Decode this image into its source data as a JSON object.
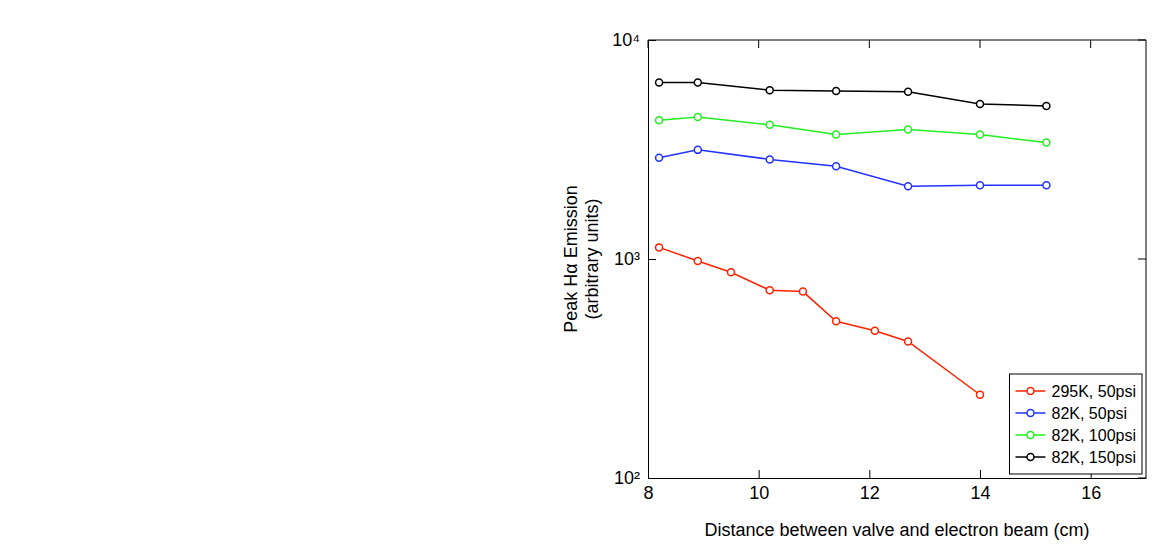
{
  "chart_data": {
    "type": "line",
    "xlabel": "Distance between valve and electron beam (cm)",
    "ylabel": [
      "Peak Hα Emission",
      "(arbitrary units)"
    ],
    "xlim": [
      8,
      17
    ],
    "xticks": [
      8,
      10,
      12,
      14,
      16
    ],
    "ylim": [
      100,
      10000
    ],
    "yticks": [
      {
        "value": 100,
        "label": "10²"
      },
      {
        "value": 1000,
        "label": "10³"
      },
      {
        "value": 10000,
        "label": "10⁴"
      }
    ],
    "log": "y",
    "grid": false,
    "legend": "lower right",
    "marker": "circle",
    "series": [
      {
        "name": "295K, 50psi",
        "color": "#ff2200",
        "x": [
          8.2,
          8.9,
          9.5,
          10.2,
          10.8,
          11.4,
          12.1,
          12.7,
          14.0
        ],
        "values": [
          1130,
          980,
          870,
          720,
          710,
          520,
          470,
          420,
          240
        ]
      },
      {
        "name": "82K, 50psi",
        "color": "#2233ff",
        "x": [
          8.2,
          8.9,
          10.2,
          11.4,
          12.7,
          14.0,
          15.2
        ],
        "values": [
          2900,
          3150,
          2850,
          2650,
          2150,
          2170,
          2170
        ]
      },
      {
        "name": "82K, 100psi",
        "color": "#22ee22",
        "x": [
          8.2,
          8.9,
          10.2,
          11.4,
          12.7,
          14.0,
          15.2
        ],
        "values": [
          4300,
          4450,
          4100,
          3700,
          3900,
          3700,
          3400
        ]
      },
      {
        "name": "82K, 150psi",
        "color": "#000000",
        "x": [
          8.2,
          8.9,
          10.2,
          11.4,
          12.7,
          14.0,
          15.2
        ],
        "values": [
          6400,
          6400,
          5900,
          5850,
          5800,
          5100,
          5000
        ]
      }
    ]
  }
}
